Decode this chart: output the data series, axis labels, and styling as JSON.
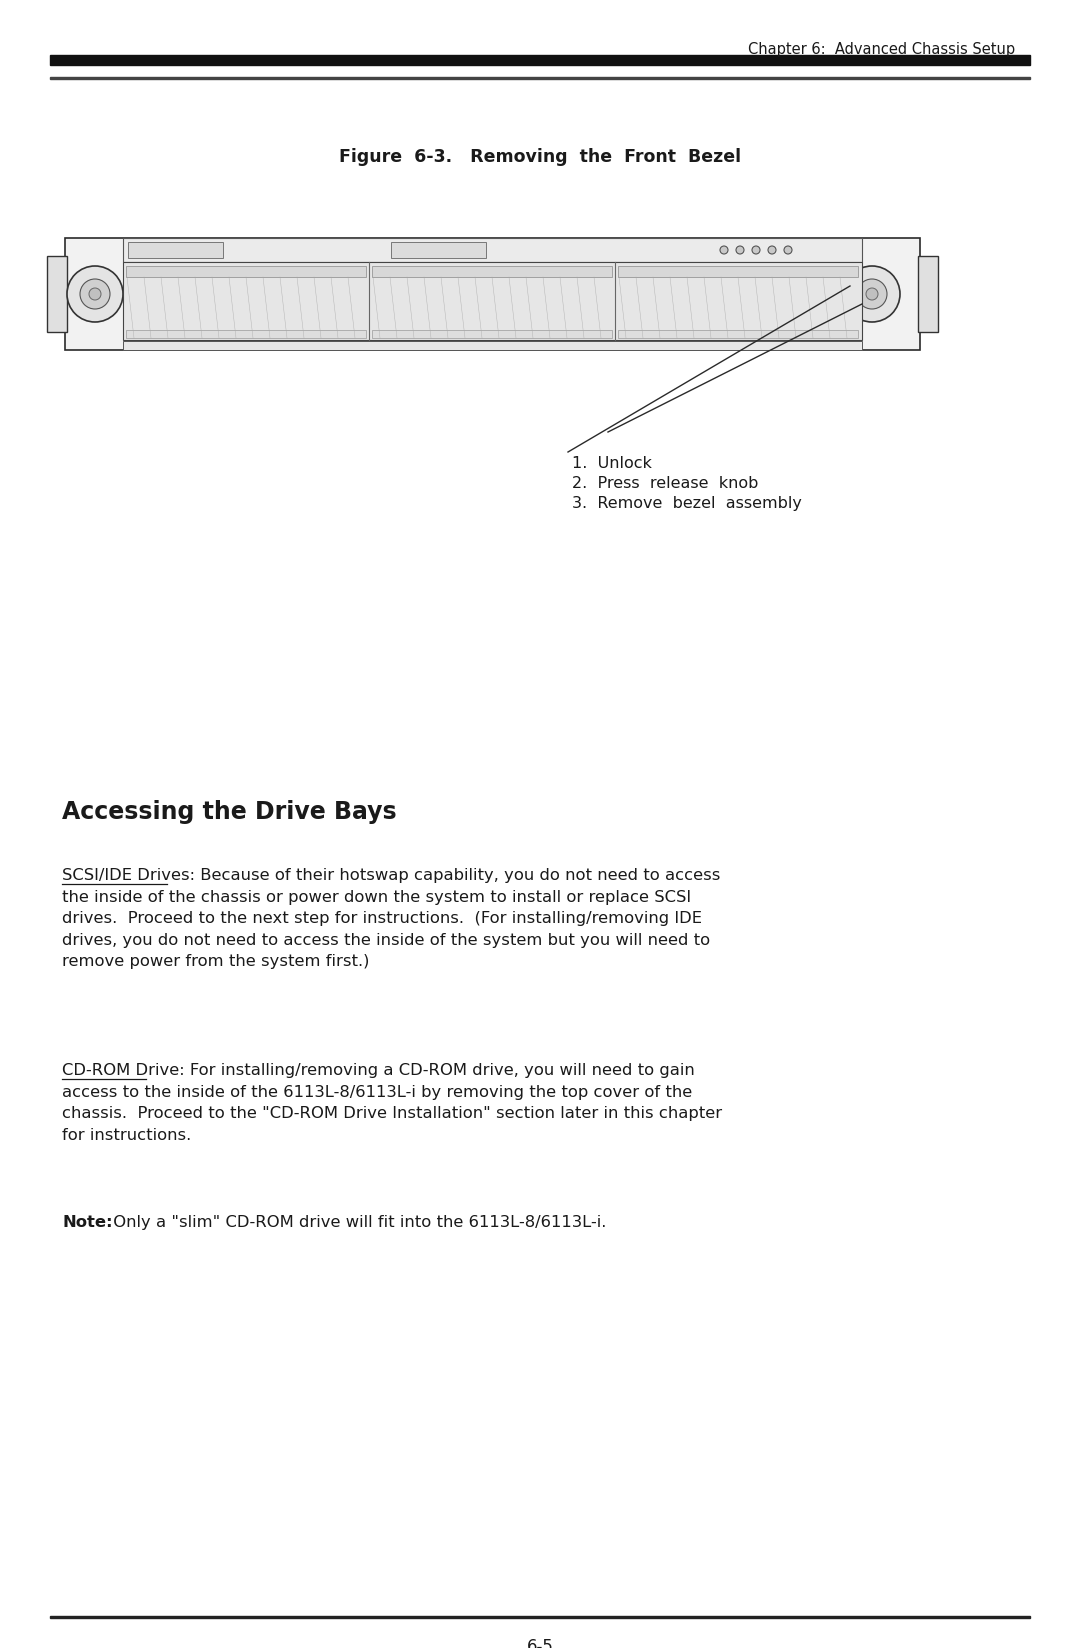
{
  "bg_color": "#ffffff",
  "header_text": "Chapter 6:  Advanced Chassis Setup",
  "figure_title": "Figure  6-3.   Removing  the  Front  Bezel",
  "step1": "1.  Unlock",
  "step2": "2.  Press  release  knob",
  "step3": "3.  Remove  bezel  assembly",
  "section_title": "Accessing the Drive Bays",
  "para1_label": "SCSI/IDE Drives",
  "para1_body": ": Because of their hotswap capability, you do not need to access\nthe inside of the chassis or power down the system to install or replace SCSI\ndrives.  Proceed to the next step for instructions.  (For installing/removing IDE\ndrives, you do not need to access the inside of the system but you will need to\nremove power from the system first.)",
  "para2_label": "CD-ROM Drive",
  "para2_body": ": For installing/removing a CD-ROM drive, you will need to gain\naccess to the inside of the 6113L-8/6113L-i by removing the top cover of the\nchassis.  Proceed to the \"CD-ROM Drive Installation\" section later in this chapter\nfor instructions.",
  "note_bold": "Note:",
  "note_body": " Only a \"slim\" CD-ROM drive will fit into the 6113L-8/6113L-i.",
  "footer_text": "6-5",
  "tc": "#1a1a1a"
}
